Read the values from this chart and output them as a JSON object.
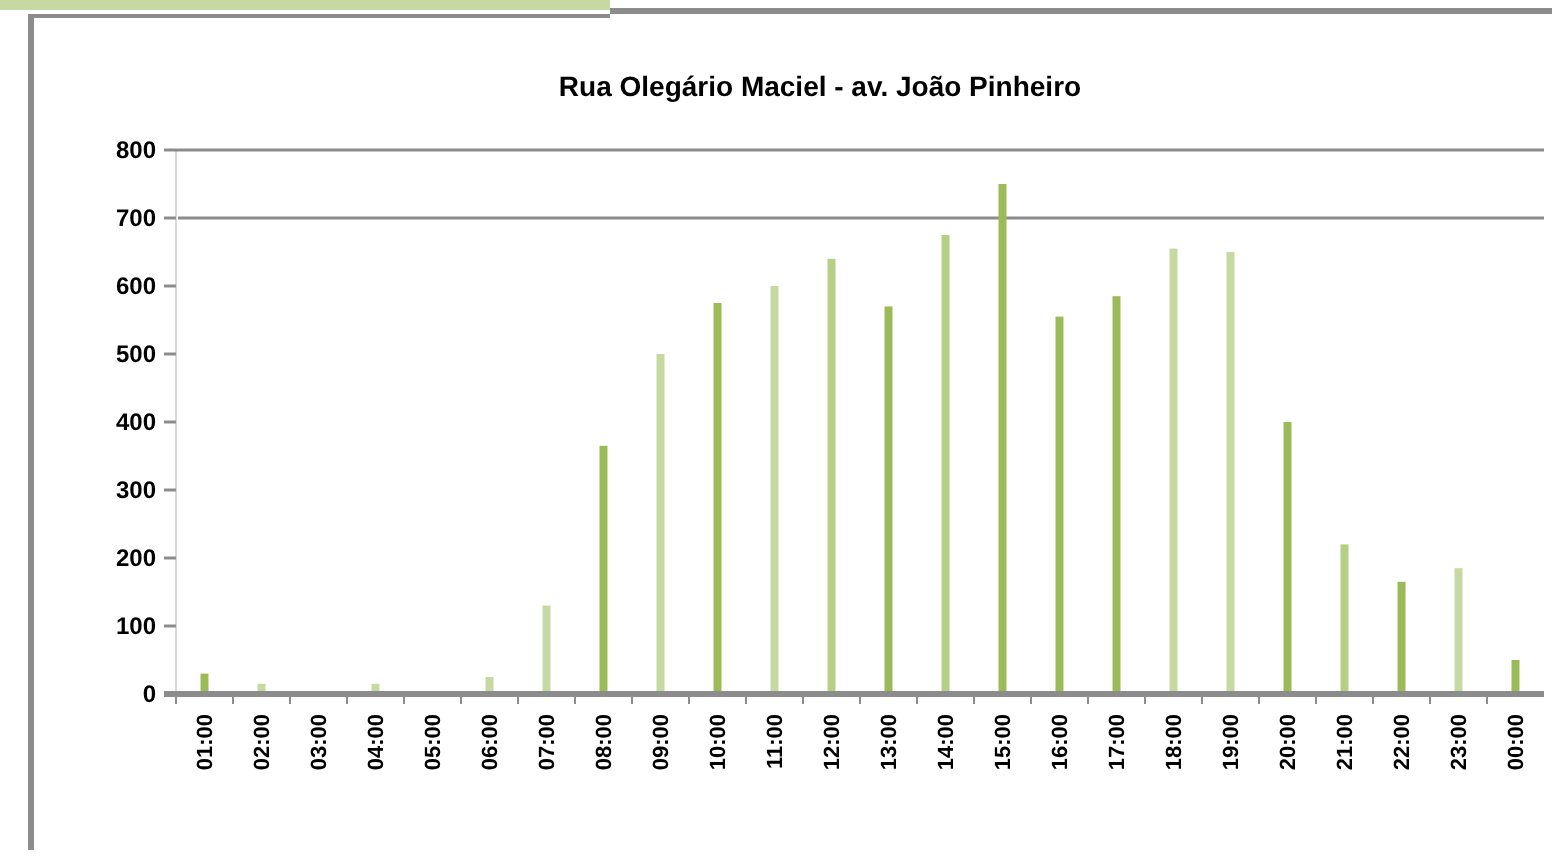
{
  "chart_data": {
    "type": "bar",
    "title": "Rua Olegário Maciel - av. João Pinheiro",
    "categories": [
      "01:00",
      "02:00",
      "03:00",
      "04:00",
      "05:00",
      "06:00",
      "07:00",
      "08:00",
      "09:00",
      "10:00",
      "11:00",
      "12:00",
      "13:00",
      "14:00",
      "15:00",
      "16:00",
      "17:00",
      "18:00",
      "19:00",
      "20:00",
      "21:00",
      "22:00",
      "23:00",
      "00:00"
    ],
    "values": [
      30,
      15,
      0,
      15,
      0,
      25,
      130,
      365,
      500,
      575,
      600,
      640,
      570,
      675,
      750,
      555,
      585,
      655,
      650,
      400,
      220,
      165,
      185,
      50
    ],
    "colors": [
      "#9bbb59",
      "#c5d9a0",
      "#c5d9a0",
      "#c5d9a0",
      "#c5d9a0",
      "#c5d9a0",
      "#c5d9a0",
      "#9bbb59",
      "#c5d9a0",
      "#9bbb59",
      "#c5d9a0",
      "#b5cf85",
      "#9bbb59",
      "#b5cf85",
      "#9bbb59",
      "#9bbb59",
      "#9bbb59",
      "#c5d9a0",
      "#c5d9a0",
      "#9bbb59",
      "#b5cf85",
      "#9bbb59",
      "#c5d9a0",
      "#9bbb59"
    ],
    "ylim": [
      0,
      800
    ],
    "yticks": [
      0,
      100,
      200,
      300,
      400,
      500,
      600,
      700,
      800
    ],
    "ref_lines": [
      {
        "axis": "y",
        "value": 700,
        "color": "#8c8c8c"
      }
    ]
  }
}
